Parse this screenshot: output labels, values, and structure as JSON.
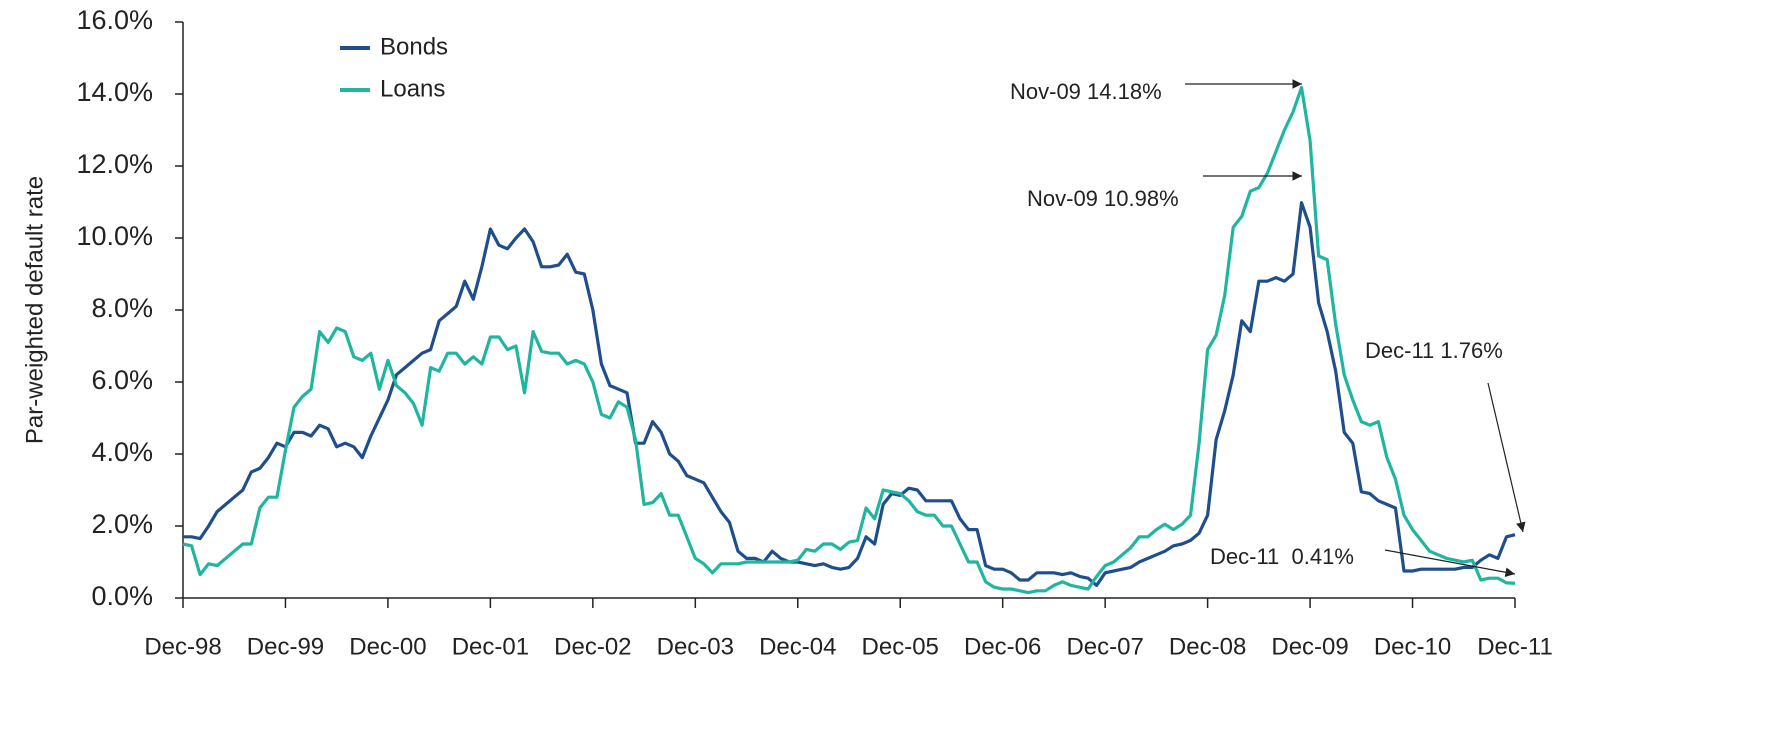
{
  "chart_data": {
    "type": "line",
    "y_label": "Par-weighted default rate",
    "categories": [
      "Dec-98",
      null,
      null,
      null,
      null,
      null,
      null,
      null,
      null,
      null,
      null,
      null,
      "Dec-99",
      null,
      null,
      null,
      null,
      null,
      null,
      null,
      null,
      null,
      null,
      null,
      "Dec-00",
      null,
      null,
      null,
      null,
      null,
      null,
      null,
      null,
      null,
      null,
      null,
      "Dec-01",
      null,
      null,
      null,
      null,
      null,
      null,
      null,
      null,
      null,
      null,
      null,
      "Dec-02",
      null,
      null,
      null,
      null,
      null,
      null,
      null,
      null,
      null,
      null,
      null,
      "Dec-03",
      null,
      null,
      null,
      null,
      null,
      null,
      null,
      null,
      null,
      null,
      null,
      "Dec-04",
      null,
      null,
      null,
      null,
      null,
      null,
      null,
      null,
      null,
      null,
      null,
      "Dec-05",
      null,
      null,
      null,
      null,
      null,
      null,
      null,
      null,
      null,
      null,
      null,
      "Dec-06",
      null,
      null,
      null,
      null,
      null,
      null,
      null,
      null,
      null,
      null,
      null,
      "Dec-07",
      null,
      null,
      null,
      null,
      null,
      null,
      null,
      null,
      null,
      null,
      null,
      "Dec-08",
      null,
      null,
      null,
      null,
      null,
      null,
      null,
      null,
      null,
      null,
      null,
      "Dec-09",
      null,
      null,
      null,
      null,
      null,
      null,
      null,
      null,
      null,
      null,
      null,
      "Dec-10",
      null,
      null,
      null,
      null,
      null,
      null,
      null,
      null,
      null,
      null,
      null,
      "Dec-11"
    ],
    "series": [
      {
        "name": "Bonds",
        "color": "#1f4e8c",
        "values": [
          1.7,
          1.7,
          1.65,
          2.0,
          2.4,
          2.6,
          2.8,
          3.0,
          3.5,
          3.6,
          3.9,
          4.3,
          4.2,
          4.6,
          4.6,
          4.5,
          4.8,
          4.7,
          4.2,
          4.3,
          4.2,
          3.9,
          4.5,
          5.0,
          5.5,
          6.2,
          6.4,
          6.6,
          6.8,
          6.9,
          7.7,
          7.9,
          8.1,
          8.8,
          8.3,
          9.2,
          10.25,
          9.8,
          9.7,
          10.0,
          10.25,
          9.9,
          9.2,
          9.2,
          9.25,
          9.55,
          9.05,
          9.0,
          8.0,
          6.5,
          5.9,
          5.8,
          5.7,
          4.3,
          4.3,
          4.9,
          4.6,
          4.0,
          3.8,
          3.4,
          3.3,
          3.2,
          2.8,
          2.4,
          2.1,
          1.3,
          1.1,
          1.1,
          1.0,
          1.3,
          1.1,
          1.0,
          1.0,
          0.95,
          0.9,
          0.95,
          0.85,
          0.8,
          0.85,
          1.1,
          1.7,
          1.5,
          2.6,
          2.9,
          2.85,
          3.05,
          3.0,
          2.7,
          2.7,
          2.7,
          2.7,
          2.2,
          1.9,
          1.9,
          0.9,
          0.8,
          0.8,
          0.7,
          0.5,
          0.5,
          0.7,
          0.7,
          0.7,
          0.65,
          0.7,
          0.6,
          0.55,
          0.35,
          0.7,
          0.75,
          0.8,
          0.85,
          1.0,
          1.1,
          1.2,
          1.3,
          1.45,
          1.5,
          1.6,
          1.8,
          2.3,
          4.4,
          5.2,
          6.2,
          7.7,
          7.4,
          8.8,
          8.8,
          8.9,
          8.8,
          9.0,
          10.98,
          10.3,
          8.2,
          7.4,
          6.3,
          4.6,
          4.3,
          2.95,
          2.9,
          2.7,
          2.6,
          2.5,
          0.75,
          0.75,
          0.8,
          0.8,
          0.8,
          0.8,
          0.8,
          0.85,
          0.85,
          1.05,
          1.2,
          1.1,
          1.7,
          1.76
        ]
      },
      {
        "name": "Loans",
        "color": "#1fb59f",
        "values": [
          1.5,
          1.45,
          0.65,
          0.95,
          0.9,
          1.1,
          1.3,
          1.5,
          1.5,
          2.5,
          2.8,
          2.8,
          4.1,
          5.3,
          5.6,
          5.8,
          7.4,
          7.1,
          7.5,
          7.4,
          6.7,
          6.6,
          6.8,
          5.8,
          6.6,
          5.9,
          5.7,
          5.4,
          4.8,
          6.4,
          6.3,
          6.8,
          6.8,
          6.5,
          6.7,
          6.5,
          7.25,
          7.25,
          6.9,
          7.0,
          5.7,
          7.4,
          6.85,
          6.8,
          6.8,
          6.5,
          6.6,
          6.5,
          6.0,
          5.1,
          5.0,
          5.45,
          5.3,
          4.4,
          2.6,
          2.65,
          2.9,
          2.3,
          2.3,
          1.7,
          1.1,
          0.95,
          0.7,
          0.95,
          0.95,
          0.95,
          1.0,
          1.0,
          1.0,
          1.0,
          1.0,
          1.0,
          1.05,
          1.35,
          1.3,
          1.5,
          1.5,
          1.35,
          1.55,
          1.6,
          2.5,
          2.2,
          3.0,
          2.95,
          2.9,
          2.7,
          2.4,
          2.3,
          2.3,
          2.0,
          2.0,
          1.5,
          1.0,
          1.0,
          0.45,
          0.3,
          0.25,
          0.25,
          0.2,
          0.15,
          0.2,
          0.2,
          0.35,
          0.45,
          0.35,
          0.3,
          0.25,
          0.6,
          0.9,
          1.0,
          1.2,
          1.4,
          1.7,
          1.7,
          1.9,
          2.05,
          1.9,
          2.05,
          2.3,
          4.3,
          6.9,
          7.3,
          8.4,
          10.3,
          10.6,
          11.3,
          11.4,
          11.8,
          12.4,
          13.0,
          13.5,
          14.18,
          12.7,
          9.5,
          9.4,
          7.6,
          6.2,
          5.5,
          4.9,
          4.8,
          4.9,
          3.9,
          3.3,
          2.3,
          1.9,
          1.6,
          1.3,
          1.2,
          1.1,
          1.05,
          1.0,
          1.05,
          0.5,
          0.55,
          0.55,
          0.42,
          0.41
        ]
      }
    ],
    "ylim": [
      0,
      16
    ],
    "yticks": [
      {
        "value": 0,
        "label": "0.0%"
      },
      {
        "value": 2,
        "label": "2.0%"
      },
      {
        "value": 4,
        "label": "4.0%"
      },
      {
        "value": 6,
        "label": "6.0%"
      },
      {
        "value": 8,
        "label": "8.0%"
      },
      {
        "value": 10,
        "label": "10.0%"
      },
      {
        "value": 12,
        "label": "12.0%"
      },
      {
        "value": 14,
        "label": "14.0%"
      },
      {
        "value": 16,
        "label": "16.0%"
      }
    ],
    "grid": false,
    "legend": "upper left",
    "annotations": [
      {
        "text": "Nov-09 14.18%"
      },
      {
        "text": "Nov-09 10.98%"
      },
      {
        "text": "Dec-11 1.76%"
      },
      {
        "text": "Dec-11  0.41%"
      }
    ]
  }
}
